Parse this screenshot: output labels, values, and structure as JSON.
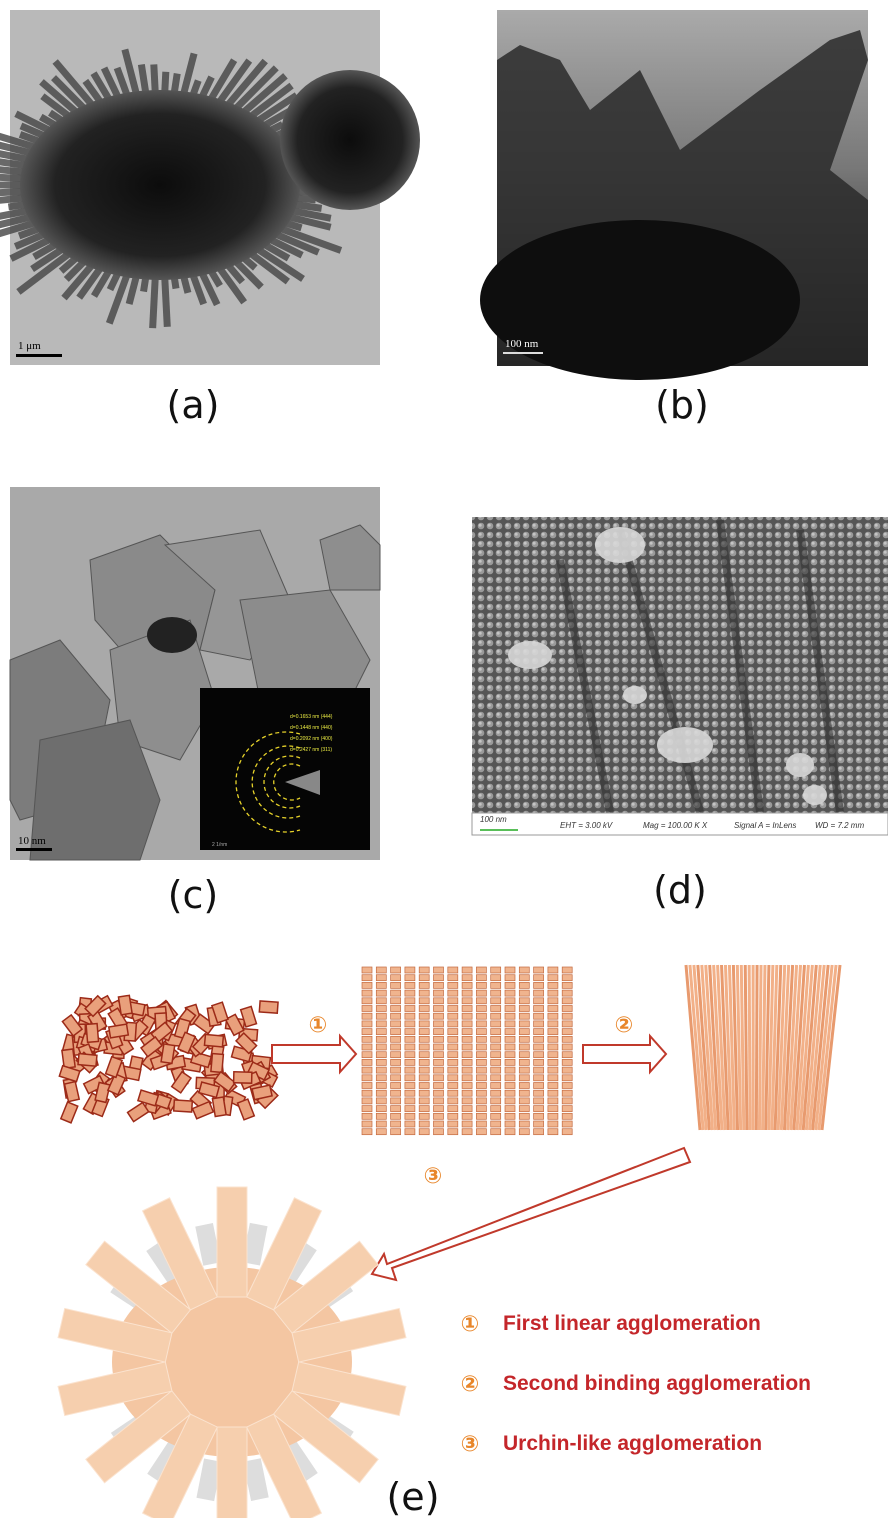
{
  "panels": [
    {
      "label": "(a)",
      "scale_bar": "1 μm"
    },
    {
      "label": "(b)",
      "scale_bar": "100 nm"
    },
    {
      "label": "(c)",
      "scale_bar": "10 nm",
      "inset": {
        "rings": [
          "d=0.1653 nm (444)",
          "d=0.1448 nm (440)",
          "d=0.2092 nm (400)",
          "d=0.2427 nm (311)"
        ],
        "scale_bar": "2 1/nm"
      }
    },
    {
      "label": "(d)",
      "info_bar": [
        "100 nm",
        "EHT = 3.00 kV",
        "Mag = 100.00 K X",
        "Signal A = InLens",
        "WD = 7.2 mm"
      ]
    },
    {
      "label": "(e)",
      "steps": [
        "①",
        "②",
        "③"
      ],
      "legend": [
        {
          "marker": "①",
          "text": "First linear  agglomeration"
        },
        {
          "marker": "②",
          "text": "Second binding  agglomeration"
        },
        {
          "marker": "③",
          "text": "Urchin-like  agglomeration"
        }
      ]
    }
  ]
}
